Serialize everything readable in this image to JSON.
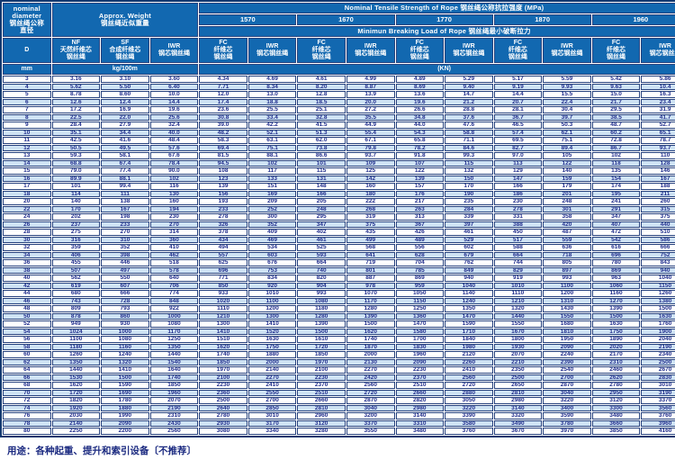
{
  "table": {
    "header": {
      "diameter_label": "nominal\ndiameter\n钢丝绳公称\n直径",
      "d_symbol": "D",
      "approx_weight_label": "Approx. Weight\n钢丝绳近似重量",
      "tensile_strength_title": "Nominal Tensile Strength of Rope 钢丝绳公称抗拉强度 (MPa)",
      "breaking_load_title": "Minimun Breaking Load of Rope 钢丝绳最小破断拉力",
      "strengths": [
        "1570",
        "1670",
        "1770",
        "1870",
        "1960"
      ],
      "core_nf": "NF\n天然纤维芯\n钢丝绳",
      "core_sf": "SF\n合成纤维芯\n钢丝绳",
      "core_iwr": "IWR\n钢芯钢丝绳",
      "sub_fc": "FC\n纤维芯\n钢丝绳",
      "sub_iwr": "IWR\n钢芯钢丝绳",
      "unit_mm": "mm",
      "unit_weight": "kg/100m",
      "unit_load": "(KN)"
    },
    "columns_semantic": [
      "diameter-mm",
      "weight-NF",
      "weight-SF",
      "weight-IWR",
      "load-1570-FC",
      "load-1570-IWR",
      "load-1670-FC",
      "load-1670-IWR",
      "load-1770-FC",
      "load-1770-IWR",
      "load-1870-FC",
      "load-1870-IWR",
      "load-1960-FC",
      "load-1960-IWR"
    ],
    "rows": [
      [
        "3",
        "3.16",
        "3.10",
        "3.60",
        "4.34",
        "4.69",
        "4.61",
        "4.99",
        "4.89",
        "5.29",
        "5.17",
        "5.59",
        "5.42",
        "5.86"
      ],
      [
        "4",
        "5.62",
        "5.50",
        "6.40",
        "7.71",
        "8.34",
        "8.20",
        "8.87",
        "8.69",
        "9.40",
        "9.19",
        "9.93",
        "9.63",
        "10.4"
      ],
      [
        "5",
        "8.78",
        "8.60",
        "10.0",
        "12.0",
        "13.0",
        "12.8",
        "13.9",
        "13.6",
        "14.7",
        "14.4",
        "15.5",
        "15.0",
        "16.3"
      ],
      [
        "6",
        "12.6",
        "12.4",
        "14.4",
        "17.4",
        "18.8",
        "18.5",
        "20.0",
        "19.6",
        "21.2",
        "20.7",
        "22.4",
        "21.7",
        "23.4"
      ],
      [
        "7",
        "17.2",
        "16.9",
        "19.6",
        "23.6",
        "25.5",
        "25.1",
        "27.2",
        "26.6",
        "28.8",
        "28.1",
        "30.4",
        "29.5",
        "31.9"
      ],
      [
        "8",
        "22.5",
        "22.0",
        "25.6",
        "30.8",
        "33.4",
        "32.8",
        "35.5",
        "34.8",
        "37.6",
        "36.7",
        "39.7",
        "38.5",
        "41.7"
      ],
      [
        "9",
        "28.4",
        "27.9",
        "32.4",
        "39.0",
        "42.2",
        "41.5",
        "44.9",
        "44.0",
        "47.6",
        "46.5",
        "50.3",
        "48.7",
        "52.7"
      ],
      [
        "10",
        "35.1",
        "34.4",
        "40.0",
        "48.2",
        "52.1",
        "51.3",
        "55.4",
        "54.3",
        "58.8",
        "57.4",
        "62.1",
        "60.2",
        "65.1"
      ],
      [
        "11",
        "42.5",
        "41.6",
        "48.4",
        "58.3",
        "63.1",
        "62.0",
        "67.1",
        "65.8",
        "71.1",
        "69.5",
        "75.1",
        "72.8",
        "78.7"
      ],
      [
        "12",
        "50.5",
        "49.5",
        "57.6",
        "69.4",
        "75.1",
        "73.8",
        "79.8",
        "78.2",
        "84.6",
        "82.7",
        "89.4",
        "86.7",
        "93.7"
      ],
      [
        "13",
        "59.3",
        "58.1",
        "67.6",
        "81.5",
        "88.1",
        "86.6",
        "93.7",
        "91.8",
        "99.3",
        "97.0",
        "105",
        "102",
        "110"
      ],
      [
        "14",
        "68.8",
        "67.4",
        "78.4",
        "94.5",
        "102",
        "101",
        "109",
        "107",
        "115",
        "113",
        "122",
        "118",
        "128"
      ],
      [
        "15",
        "79.0",
        "77.4",
        "90.0",
        "108",
        "117",
        "115",
        "125",
        "122",
        "132",
        "129",
        "140",
        "135",
        "146"
      ],
      [
        "16",
        "89.9",
        "88.1",
        "102",
        "123",
        "133",
        "131",
        "142",
        "139",
        "150",
        "147",
        "159",
        "154",
        "167"
      ],
      [
        "17",
        "101",
        "99.4",
        "116",
        "139",
        "151",
        "148",
        "160",
        "157",
        "170",
        "166",
        "179",
        "174",
        "188"
      ],
      [
        "18",
        "114",
        "111",
        "130",
        "156",
        "169",
        "166",
        "180",
        "176",
        "190",
        "186",
        "201",
        "195",
        "211"
      ],
      [
        "20",
        "140",
        "138",
        "160",
        "193",
        "209",
        "205",
        "222",
        "217",
        "235",
        "230",
        "248",
        "241",
        "260"
      ],
      [
        "22",
        "170",
        "167",
        "194",
        "233",
        "252",
        "248",
        "268",
        "263",
        "284",
        "278",
        "301",
        "291",
        "315"
      ],
      [
        "24",
        "202",
        "198",
        "230",
        "278",
        "300",
        "295",
        "319",
        "313",
        "339",
        "331",
        "358",
        "347",
        "375"
      ],
      [
        "26",
        "237",
        "233",
        "270",
        "326",
        "352",
        "347",
        "375",
        "367",
        "397",
        "388",
        "420",
        "407",
        "440"
      ],
      [
        "28",
        "275",
        "270",
        "314",
        "378",
        "409",
        "402",
        "435",
        "426",
        "461",
        "450",
        "487",
        "472",
        "510"
      ],
      [
        "30",
        "316",
        "310",
        "360",
        "434",
        "469",
        "461",
        "499",
        "489",
        "529",
        "517",
        "559",
        "542",
        "586"
      ],
      [
        "32",
        "359",
        "352",
        "410",
        "494",
        "534",
        "525",
        "568",
        "556",
        "602",
        "588",
        "636",
        "616",
        "666"
      ],
      [
        "34",
        "406",
        "398",
        "462",
        "557",
        "603",
        "593",
        "641",
        "628",
        "679",
        "664",
        "718",
        "696",
        "752"
      ],
      [
        "36",
        "455",
        "446",
        "518",
        "625",
        "676",
        "664",
        "719",
        "704",
        "762",
        "744",
        "805",
        "780",
        "843"
      ],
      [
        "38",
        "507",
        "497",
        "578",
        "696",
        "753",
        "740",
        "801",
        "785",
        "849",
        "829",
        "897",
        "869",
        "940"
      ],
      [
        "40",
        "562",
        "550",
        "640",
        "771",
        "834",
        "820",
        "887",
        "869",
        "940",
        "919",
        "993",
        "963",
        "1040"
      ],
      [
        "42",
        "619",
        "607",
        "706",
        "850",
        "920",
        "904",
        "978",
        "959",
        "1040",
        "1010",
        "1100",
        "1060",
        "1150"
      ],
      [
        "44",
        "680",
        "666",
        "774",
        "933",
        "1010",
        "993",
        "1070",
        "1050",
        "1140",
        "1110",
        "1200",
        "1160",
        "1260"
      ],
      [
        "46",
        "743",
        "728",
        "848",
        "1020",
        "1100",
        "1080",
        "1170",
        "1150",
        "1240",
        "1210",
        "1310",
        "1270",
        "1380"
      ],
      [
        "48",
        "809",
        "793",
        "922",
        "1110",
        "1200",
        "1180",
        "1280",
        "1250",
        "1350",
        "1320",
        "1430",
        "1390",
        "1500"
      ],
      [
        "50",
        "878",
        "860",
        "1000",
        "1210",
        "1300",
        "1280",
        "1390",
        "1360",
        "1470",
        "1440",
        "1550",
        "1500",
        "1630"
      ],
      [
        "52",
        "949",
        "930",
        "1080",
        "1300",
        "1410",
        "1390",
        "1500",
        "1470",
        "1590",
        "1550",
        "1680",
        "1630",
        "1760"
      ],
      [
        "54",
        "1024",
        "1000",
        "1170",
        "1410",
        "1520",
        "1500",
        "1620",
        "1580",
        "1710",
        "1670",
        "1810",
        "1750",
        "1900"
      ],
      [
        "56",
        "1100",
        "1080",
        "1250",
        "1510",
        "1630",
        "1610",
        "1740",
        "1700",
        "1840",
        "1800",
        "1950",
        "1890",
        "2040"
      ],
      [
        "58",
        "1180",
        "1160",
        "1350",
        "1620",
        "1750",
        "1720",
        "1870",
        "1830",
        "1980",
        "1930",
        "2090",
        "2020",
        "2190"
      ],
      [
        "60",
        "1260",
        "1240",
        "1440",
        "1740",
        "1880",
        "1850",
        "2000",
        "1960",
        "2120",
        "2070",
        "2240",
        "2170",
        "2340"
      ],
      [
        "62",
        "1350",
        "1320",
        "1540",
        "1850",
        "2000",
        "1970",
        "2130",
        "2090",
        "2260",
        "2210",
        "2390",
        "2310",
        "2500"
      ],
      [
        "64",
        "1440",
        "1410",
        "1640",
        "1970",
        "2140",
        "2100",
        "2270",
        "2230",
        "2410",
        "2350",
        "2540",
        "2460",
        "2670"
      ],
      [
        "66",
        "1530",
        "1500",
        "1740",
        "2100",
        "2270",
        "2230",
        "2420",
        "2370",
        "2560",
        "2500",
        "2700",
        "2620",
        "2830"
      ],
      [
        "68",
        "1620",
        "1590",
        "1850",
        "2230",
        "2410",
        "2370",
        "2560",
        "2510",
        "2720",
        "2650",
        "2870",
        "2780",
        "3010"
      ],
      [
        "70",
        "1720",
        "1690",
        "1960",
        "2360",
        "2550",
        "2510",
        "2720",
        "2660",
        "2880",
        "2810",
        "3040",
        "2950",
        "3190"
      ],
      [
        "72",
        "1820",
        "1780",
        "2070",
        "2500",
        "2700",
        "2660",
        "2870",
        "2820",
        "3050",
        "2980",
        "3220",
        "3120",
        "3370"
      ],
      [
        "74",
        "1920",
        "1880",
        "2190",
        "2640",
        "2850",
        "2810",
        "3040",
        "2980",
        "3220",
        "3140",
        "3400",
        "3300",
        "3560"
      ],
      [
        "76",
        "2030",
        "1990",
        "2310",
        "2780",
        "3010",
        "2960",
        "3200",
        "3140",
        "3390",
        "3320",
        "3590",
        "3480",
        "3760"
      ],
      [
        "78",
        "2140",
        "2090",
        "2430",
        "2930",
        "3170",
        "3120",
        "3370",
        "3310",
        "3580",
        "3490",
        "3780",
        "3660",
        "3960"
      ],
      [
        "80",
        "2250",
        "2200",
        "2560",
        "3080",
        "3340",
        "3280",
        "3550",
        "3480",
        "3760",
        "3670",
        "3970",
        "3850",
        "4160"
      ]
    ]
  },
  "footer": {
    "usage_note": "用途：各种起重、提升和索引设备〔不推荐〕"
  },
  "colors": {
    "header_bg": "#1268b0",
    "header_text": "#ffffff",
    "row_alt_bg": "#cfe3f4",
    "data_text": "#202d8c",
    "border": "#27427e",
    "outer_border": "#12386f"
  }
}
